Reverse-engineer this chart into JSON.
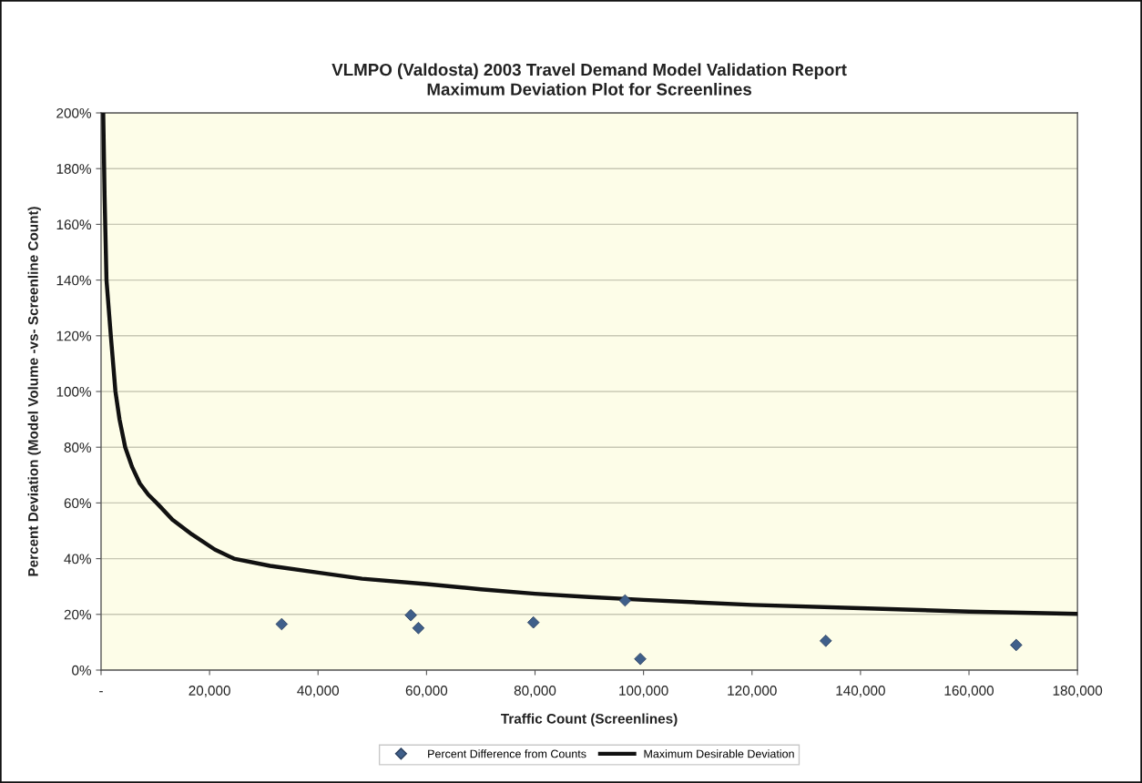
{
  "chart_data": {
    "type": "scatter",
    "title": "VLMPO (Valdosta) 2003 Travel Demand Model Validation Report\nMaximum Deviation Plot for Screenlines",
    "xlabel": "Traffic Count (Screenlines)",
    "ylabel": "Percent Deviation (Model Volume -vs- Screenline Count)",
    "series": [
      {
        "name": "Percent Difference from Counts",
        "color": "#3f5f8a",
        "marker": "diamond",
        "x": [
          33300,
          57100,
          58500,
          79700,
          96600,
          99400,
          133600,
          168700
        ],
        "values": [
          16.5,
          19.7,
          15.1,
          17.1,
          25,
          4,
          10.5,
          9
        ]
      },
      {
        "name": "Maximum Desirable Deviation",
        "type": "line",
        "color": "#111111",
        "marker": "none",
        "line_style": "solid",
        "x": [
          400,
          650,
          1000,
          1800,
          2650,
          3400,
          4450,
          5700,
          7150,
          8700,
          10450,
          13150,
          16750,
          20950,
          24500,
          31150,
          40000,
          48100,
          60000,
          70000,
          80000,
          90000,
          100000,
          120000,
          140000,
          160000,
          180000
        ],
        "values": [
          200,
          170,
          140,
          120,
          100,
          90,
          80,
          73,
          67,
          63,
          59.6,
          54,
          48.7,
          43.3,
          40,
          37.4,
          35,
          32.8,
          30.9,
          29,
          27.4,
          26.2,
          25.2,
          23.4,
          22.2,
          21,
          20.2
        ]
      }
    ],
    "xlim": [
      0,
      180000
    ],
    "xticks": [
      {
        "value": 0,
        "label": "-"
      },
      {
        "value": 20000,
        "label": "20,000"
      },
      {
        "value": 40000,
        "label": "40,000"
      },
      {
        "value": 60000,
        "label": "60,000"
      },
      {
        "value": 80000,
        "label": "80,000"
      },
      {
        "value": 100000,
        "label": "100,000"
      },
      {
        "value": 120000,
        "label": "120,000"
      },
      {
        "value": 140000,
        "label": "140,000"
      },
      {
        "value": 160000,
        "label": "160,000"
      },
      {
        "value": 180000,
        "label": "180,000"
      }
    ],
    "ylim": [
      0,
      200
    ],
    "yticks": [
      {
        "value": 0,
        "label": "0%"
      },
      {
        "value": 20,
        "label": "20%"
      },
      {
        "value": 40,
        "label": "40%"
      },
      {
        "value": 60,
        "label": "60%"
      },
      {
        "value": 80,
        "label": "80%"
      },
      {
        "value": 100,
        "label": "100%"
      },
      {
        "value": 120,
        "label": "120%"
      },
      {
        "value": 140,
        "label": "140%"
      },
      {
        "value": 160,
        "label": "160%"
      },
      {
        "value": 180,
        "label": "180%"
      },
      {
        "value": 200,
        "label": "200%"
      }
    ],
    "grid": "y",
    "legend": "bottom"
  }
}
